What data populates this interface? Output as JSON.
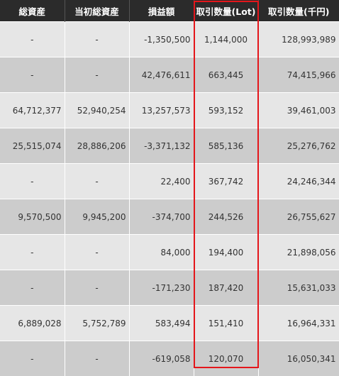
{
  "headers": [
    "総資産",
    "当初総資産",
    "損益額",
    "取引数量(Lot)",
    "取引数量(千円)"
  ],
  "rows": [
    [
      "-",
      "-",
      "-1,350,500",
      "1,144,000",
      "128,993,989"
    ],
    [
      "-",
      "-",
      "42,476,611",
      "663,445",
      "74,415,966"
    ],
    [
      "64,712,377",
      "52,940,254",
      "13,257,573",
      "593,152",
      "39,461,003"
    ],
    [
      "25,515,074",
      "28,886,206",
      "-3,371,132",
      "585,136",
      "25,276,762"
    ],
    [
      "-",
      "-",
      "22,400",
      "367,742",
      "24,246,344"
    ],
    [
      "9,570,500",
      "9,945,200",
      "-374,700",
      "244,526",
      "26,755,627"
    ],
    [
      "-",
      "-",
      "84,000",
      "194,400",
      "21,898,056"
    ],
    [
      "-",
      "-",
      "-171,230",
      "187,420",
      "15,631,033"
    ],
    [
      "6,889,028",
      "5,752,789",
      "583,494",
      "151,410",
      "16,964,331"
    ],
    [
      "-",
      "-",
      "-619,058",
      "120,070",
      "16,050,341"
    ]
  ],
  "colors": {
    "header_bg": "#2b2b2b",
    "row_odd": "#e6e6e6",
    "row_even": "#cccccc",
    "highlight_border": "#e4161b"
  }
}
